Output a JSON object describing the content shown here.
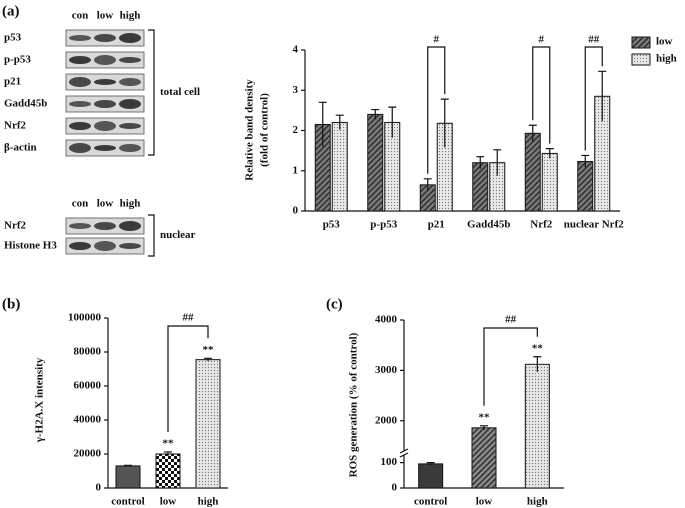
{
  "panel_labels": [
    "(a)",
    "(b)",
    "(c)"
  ],
  "blots": {
    "total": {
      "lanes": [
        "con",
        "low",
        "high"
      ],
      "rows": [
        "p53",
        "p-p53",
        "p21",
        "Gadd45b",
        "Nrf2",
        "β-actin"
      ],
      "label": "total cell"
    },
    "nuclear": {
      "lanes": [
        "con",
        "low",
        "high"
      ],
      "rows": [
        "Nrf2",
        "Histone H3"
      ],
      "label": "nuclear"
    }
  },
  "chart_data": [
    {
      "type": "bar",
      "y_label": [
        "Relative band density",
        "(fold of control)"
      ],
      "categories": [
        "p53",
        "p-p53",
        "p21",
        "Gadd45b",
        "Nrf2",
        "nuclear Nrf2"
      ],
      "series": [
        {
          "name": "low",
          "color": "#7a7a7a",
          "pattern": "hatch",
          "values": [
            2.15,
            2.4,
            0.65,
            1.2,
            1.93,
            1.23
          ],
          "errors": [
            0.55,
            0.12,
            0.15,
            0.15,
            0.2,
            0.15
          ]
        },
        {
          "name": "high",
          "color": "#e8e8e8",
          "pattern": "dots",
          "values": [
            2.2,
            2.2,
            2.18,
            1.2,
            1.43,
            2.85
          ],
          "errors": [
            0.18,
            0.38,
            0.6,
            0.32,
            0.12,
            0.62
          ]
        }
      ],
      "ylim": [
        0,
        4
      ],
      "yticks": [
        0,
        1,
        2,
        3,
        4
      ],
      "legend": "right",
      "annotations": [
        {
          "text": "#",
          "category": "p21"
        },
        {
          "text": "#",
          "category": "Nrf2"
        },
        {
          "text": "##",
          "category": "nuclear Nrf2"
        }
      ]
    },
    {
      "type": "bar",
      "y_label": [
        "γ-H2A.X intensity"
      ],
      "categories": [
        "control",
        "low",
        "high"
      ],
      "values": [
        13000,
        20000,
        75500
      ],
      "errors": [
        300,
        1200,
        800
      ],
      "colors": [
        "#555555",
        "#ffffff",
        "#e6e6e6"
      ],
      "patterns": [
        "solid",
        "checker",
        "dots"
      ],
      "significance": [
        null,
        "**",
        "**"
      ],
      "ylim": [
        0,
        100000
      ],
      "yticks": [
        0,
        20000,
        40000,
        60000,
        80000,
        100000
      ],
      "annotations": [
        {
          "text": "##",
          "between": [
            "low",
            "high"
          ]
        }
      ]
    },
    {
      "type": "bar",
      "y_label": [
        "ROS generation (% of control)"
      ],
      "categories": [
        "control",
        "low",
        "high"
      ],
      "values": [
        95,
        1860,
        3120
      ],
      "errors": [
        5,
        40,
        150
      ],
      "colors": [
        "#3a3a3a",
        "#8a8a8a",
        "#e6e6e6"
      ],
      "patterns": [
        "solid",
        "hatch",
        "dots"
      ],
      "significance": [
        null,
        "**",
        "**"
      ],
      "ylim": [
        0,
        4000
      ],
      "y_break": [
        130,
        1400
      ],
      "yticks": [
        0,
        100,
        2000,
        3000,
        4000
      ],
      "annotations": [
        {
          "text": "##",
          "between": [
            "low",
            "high"
          ]
        }
      ]
    }
  ]
}
